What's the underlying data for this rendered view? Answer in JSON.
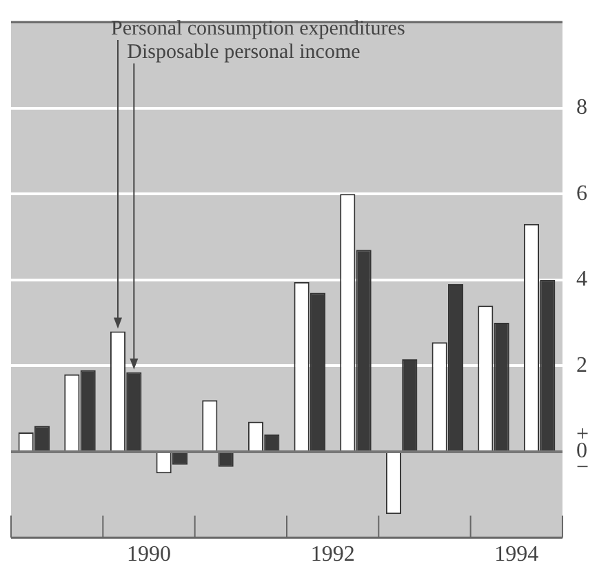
{
  "chart_data": {
    "type": "bar",
    "x": [
      1989.25,
      1989.75,
      1990.25,
      1990.75,
      1991.25,
      1991.75,
      1992.25,
      1992.75,
      1993.25,
      1993.75,
      1994.25,
      1994.75
    ],
    "series": [
      {
        "name": "Personal consumption expenditures",
        "color": "#ffffff",
        "values": [
          0.45,
          1.8,
          2.8,
          -0.5,
          1.2,
          0.7,
          3.95,
          6.0,
          -1.45,
          2.55,
          3.4,
          5.3
        ]
      },
      {
        "name": "Disposable personal income",
        "color": "#3a3a3a",
        "values": [
          0.6,
          1.9,
          1.85,
          -0.3,
          -0.35,
          0.4,
          3.7,
          4.7,
          2.15,
          3.9,
          3.0,
          4.0
        ]
      }
    ],
    "xlim": [
      1989,
      1995
    ],
    "xticks": [
      {
        "value": 1989,
        "label": null
      },
      {
        "value": 1990,
        "label": null
      },
      {
        "value": 1990.5,
        "label": "1990"
      },
      {
        "value": 1991,
        "label": null
      },
      {
        "value": 1992,
        "label": null
      },
      {
        "value": 1992.5,
        "label": "1992"
      },
      {
        "value": 1993,
        "label": null
      },
      {
        "value": 1994,
        "label": null
      },
      {
        "value": 1994.5,
        "label": "1994"
      },
      {
        "value": 1995,
        "label": null
      }
    ],
    "ylim": [
      -2,
      10
    ],
    "yticks": [
      {
        "value": 0,
        "label": "+\n0\n−"
      },
      2,
      4,
      6,
      8
    ],
    "grid": "y",
    "legend": false
  }
}
